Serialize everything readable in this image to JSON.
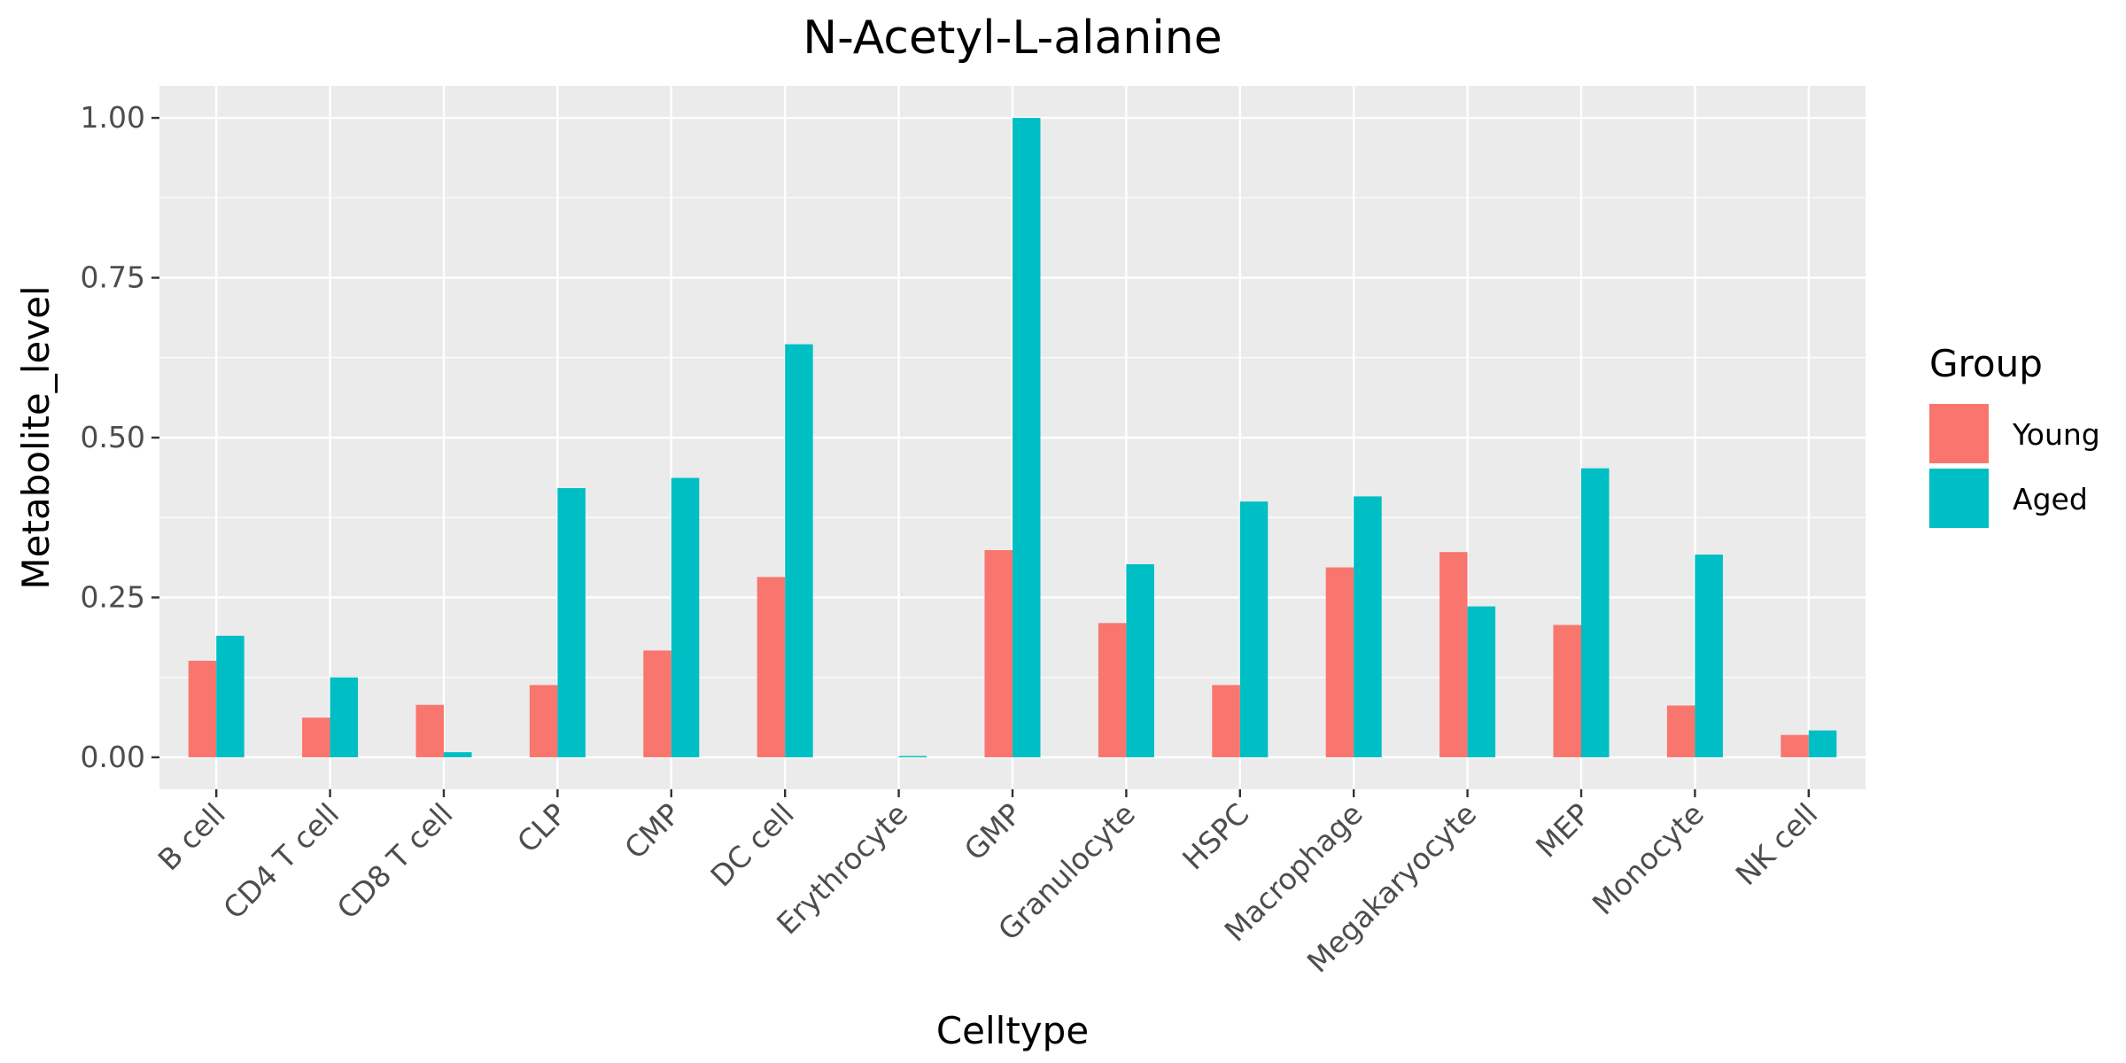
{
  "chart_data": {
    "type": "bar",
    "title": "N-Acetyl-L-alanine",
    "xlabel": "Celltype",
    "ylabel": "Metabolite_level",
    "ylim": [
      -0.05,
      1.05
    ],
    "yticks": [
      0,
      0.25,
      0.5,
      0.75,
      1.0
    ],
    "ytick_labels": [
      "0.00",
      "0.25",
      "0.50",
      "0.75",
      "1.00"
    ],
    "grid": true,
    "legend": {
      "title": "Group",
      "position": "right"
    },
    "categories": [
      "B cell",
      "CD4 T cell",
      "CD8 T cell",
      "CLP",
      "CMP",
      "DC cell",
      "Erythrocyte",
      "GMP",
      "Granulocyte",
      "HSPC",
      "Macrophage",
      "Megakaryocyte",
      "MEP",
      "Monocyte",
      "NK cell"
    ],
    "series": [
      {
        "name": "Young",
        "color": "#F8766D",
        "values": [
          0.151,
          0.062,
          0.082,
          0.113,
          0.167,
          0.282,
          0.0,
          0.324,
          0.21,
          0.113,
          0.297,
          0.321,
          0.207,
          0.081,
          0.035
        ]
      },
      {
        "name": "Aged",
        "color": "#00BFC4",
        "values": [
          0.19,
          0.125,
          0.008,
          0.421,
          0.437,
          0.646,
          0.002,
          1.0,
          0.302,
          0.4,
          0.408,
          0.236,
          0.452,
          0.317,
          0.042
        ]
      }
    ]
  }
}
